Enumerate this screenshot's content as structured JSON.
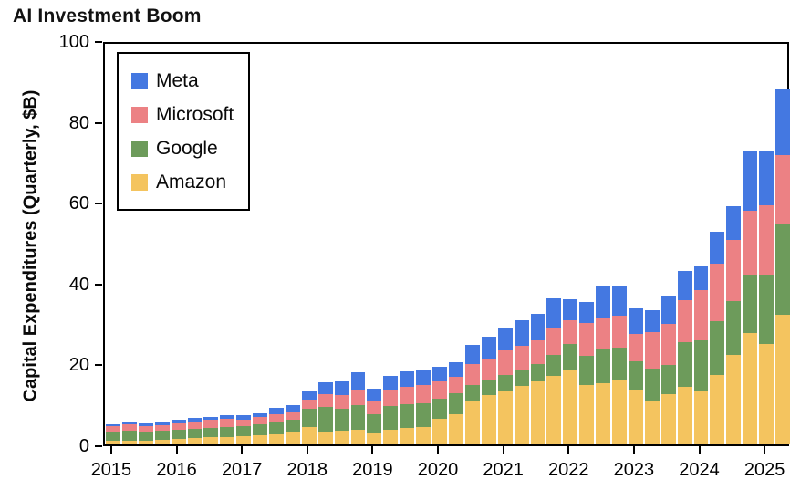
{
  "title": "AI Investment Boom",
  "y_axis": {
    "label": "Capital Expenditures (Quarterly, $B)",
    "ticks": [
      0,
      20,
      40,
      60,
      80,
      100
    ],
    "max": 100
  },
  "x_axis": {
    "years": [
      "2015",
      "2016",
      "2017",
      "2018",
      "2019",
      "2020",
      "2021",
      "2022",
      "2023",
      "2024",
      "2025"
    ]
  },
  "legend": {
    "items": [
      {
        "label": "Meta",
        "color": "#4478E1"
      },
      {
        "label": "Microsoft",
        "color": "#EC8184"
      },
      {
        "label": "Google",
        "color": "#6D9B5B"
      },
      {
        "label": "Amazon",
        "color": "#F4C45F"
      }
    ]
  },
  "chart_data": {
    "type": "bar",
    "stacked": true,
    "title": "AI Investment Boom",
    "ylabel": "Capital Expenditures (Quarterly, $B)",
    "xlabel": "",
    "ylim": [
      0,
      100
    ],
    "grid": false,
    "legend_position": "upper left",
    "x": [
      "2015 Q1",
      "2015 Q2",
      "2015 Q3",
      "2015 Q4",
      "2016 Q1",
      "2016 Q2",
      "2016 Q3",
      "2016 Q4",
      "2017 Q1",
      "2017 Q2",
      "2017 Q3",
      "2017 Q4",
      "2018 Q1",
      "2018 Q2",
      "2018 Q3",
      "2018 Q4",
      "2019 Q1",
      "2019 Q2",
      "2019 Q3",
      "2019 Q4",
      "2020 Q1",
      "2020 Q2",
      "2020 Q3",
      "2020 Q4",
      "2021 Q1",
      "2021 Q2",
      "2021 Q3",
      "2021 Q4",
      "2022 Q1",
      "2022 Q2",
      "2022 Q3",
      "2022 Q4",
      "2023 Q1",
      "2023 Q2",
      "2023 Q3",
      "2023 Q4",
      "2024 Q1",
      "2024 Q2",
      "2024 Q3",
      "2024 Q4",
      "2025 Q1",
      "2025 Q2"
    ],
    "series": [
      {
        "name": "Amazon",
        "color": "#F4C45F",
        "values": [
          0.8,
          0.9,
          1.0,
          1.1,
          1.3,
          1.5,
          1.7,
          1.9,
          2.0,
          2.2,
          2.5,
          2.9,
          4.4,
          3.2,
          3.3,
          3.6,
          2.7,
          3.6,
          4.0,
          4.4,
          6.4,
          7.5,
          10.9,
          12.2,
          13.4,
          14.4,
          15.5,
          17.0,
          18.5,
          14.7,
          15.1,
          16.0,
          13.6,
          10.9,
          12.4,
          14.3,
          13.2,
          17.2,
          22.2,
          27.5,
          24.9,
          32.0
        ]
      },
      {
        "name": "Google",
        "color": "#6D9B5B",
        "values": [
          2.3,
          2.4,
          2.2,
          2.2,
          2.3,
          2.4,
          2.4,
          2.5,
          2.6,
          2.8,
          3.1,
          3.2,
          4.3,
          6.0,
          5.6,
          6.2,
          4.7,
          5.9,
          5.9,
          5.8,
          5.0,
          5.2,
          3.8,
          3.7,
          3.8,
          4.0,
          4.4,
          5.2,
          6.3,
          7.3,
          8.4,
          7.9,
          6.9,
          7.9,
          7.3,
          11.0,
          12.6,
          13.3,
          13.3,
          14.6,
          17.2,
          22.6
        ]
      },
      {
        "name": "Microsoft",
        "color": "#EC8184",
        "values": [
          1.4,
          1.6,
          1.4,
          1.5,
          1.7,
          1.8,
          1.9,
          1.9,
          1.6,
          1.7,
          1.8,
          1.8,
          2.4,
          3.2,
          3.4,
          3.7,
          3.5,
          4.1,
          4.3,
          4.5,
          4.1,
          4.0,
          5.2,
          5.4,
          6.0,
          6.0,
          5.8,
          6.6,
          5.8,
          8.0,
          7.7,
          7.9,
          6.9,
          8.9,
          10.0,
          10.3,
          12.3,
          14.1,
          15.1,
          15.8,
          17.1,
          17.0
        ]
      },
      {
        "name": "Meta",
        "color": "#4478E1",
        "values": [
          0.5,
          0.6,
          0.6,
          0.7,
          0.8,
          0.8,
          0.8,
          0.9,
          1.1,
          1.1,
          1.6,
          1.8,
          2.2,
          3.0,
          3.2,
          4.3,
          2.9,
          3.4,
          3.8,
          3.8,
          3.6,
          3.6,
          4.8,
          5.4,
          5.8,
          6.2,
          6.6,
          7.3,
          5.3,
          5.2,
          7.8,
          7.4,
          6.2,
          5.4,
          7.2,
          7.2,
          6.1,
          8.1,
          8.3,
          14.5,
          13.2,
          16.5
        ]
      }
    ]
  }
}
